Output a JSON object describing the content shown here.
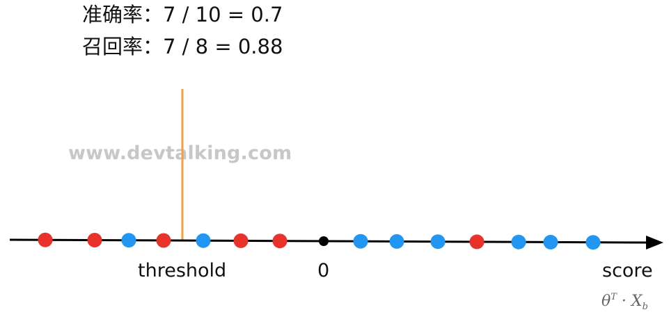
{
  "metrics": {
    "precision": "准确率：7 / 10 = 0.7",
    "recall": "召回率：7 / 8 = 0.88"
  },
  "watermark": "www.devtalking.com",
  "axis": {
    "threshold_label": "threshold",
    "zero_label": "0",
    "score_label": "score",
    "formula": {
      "theta": "θ",
      "sup": "T",
      "dot": " · ",
      "x": "X",
      "sub": "b"
    }
  },
  "colors": {
    "red": "#e8322a",
    "blue": "#2196f3",
    "black": "#000000",
    "threshold_line": "#f0a040"
  },
  "points": [
    "red",
    "red",
    "blue",
    "red",
    "blue",
    "red",
    "red",
    "black",
    "blue",
    "blue",
    "blue",
    "red",
    "blue",
    "blue",
    "blue"
  ]
}
